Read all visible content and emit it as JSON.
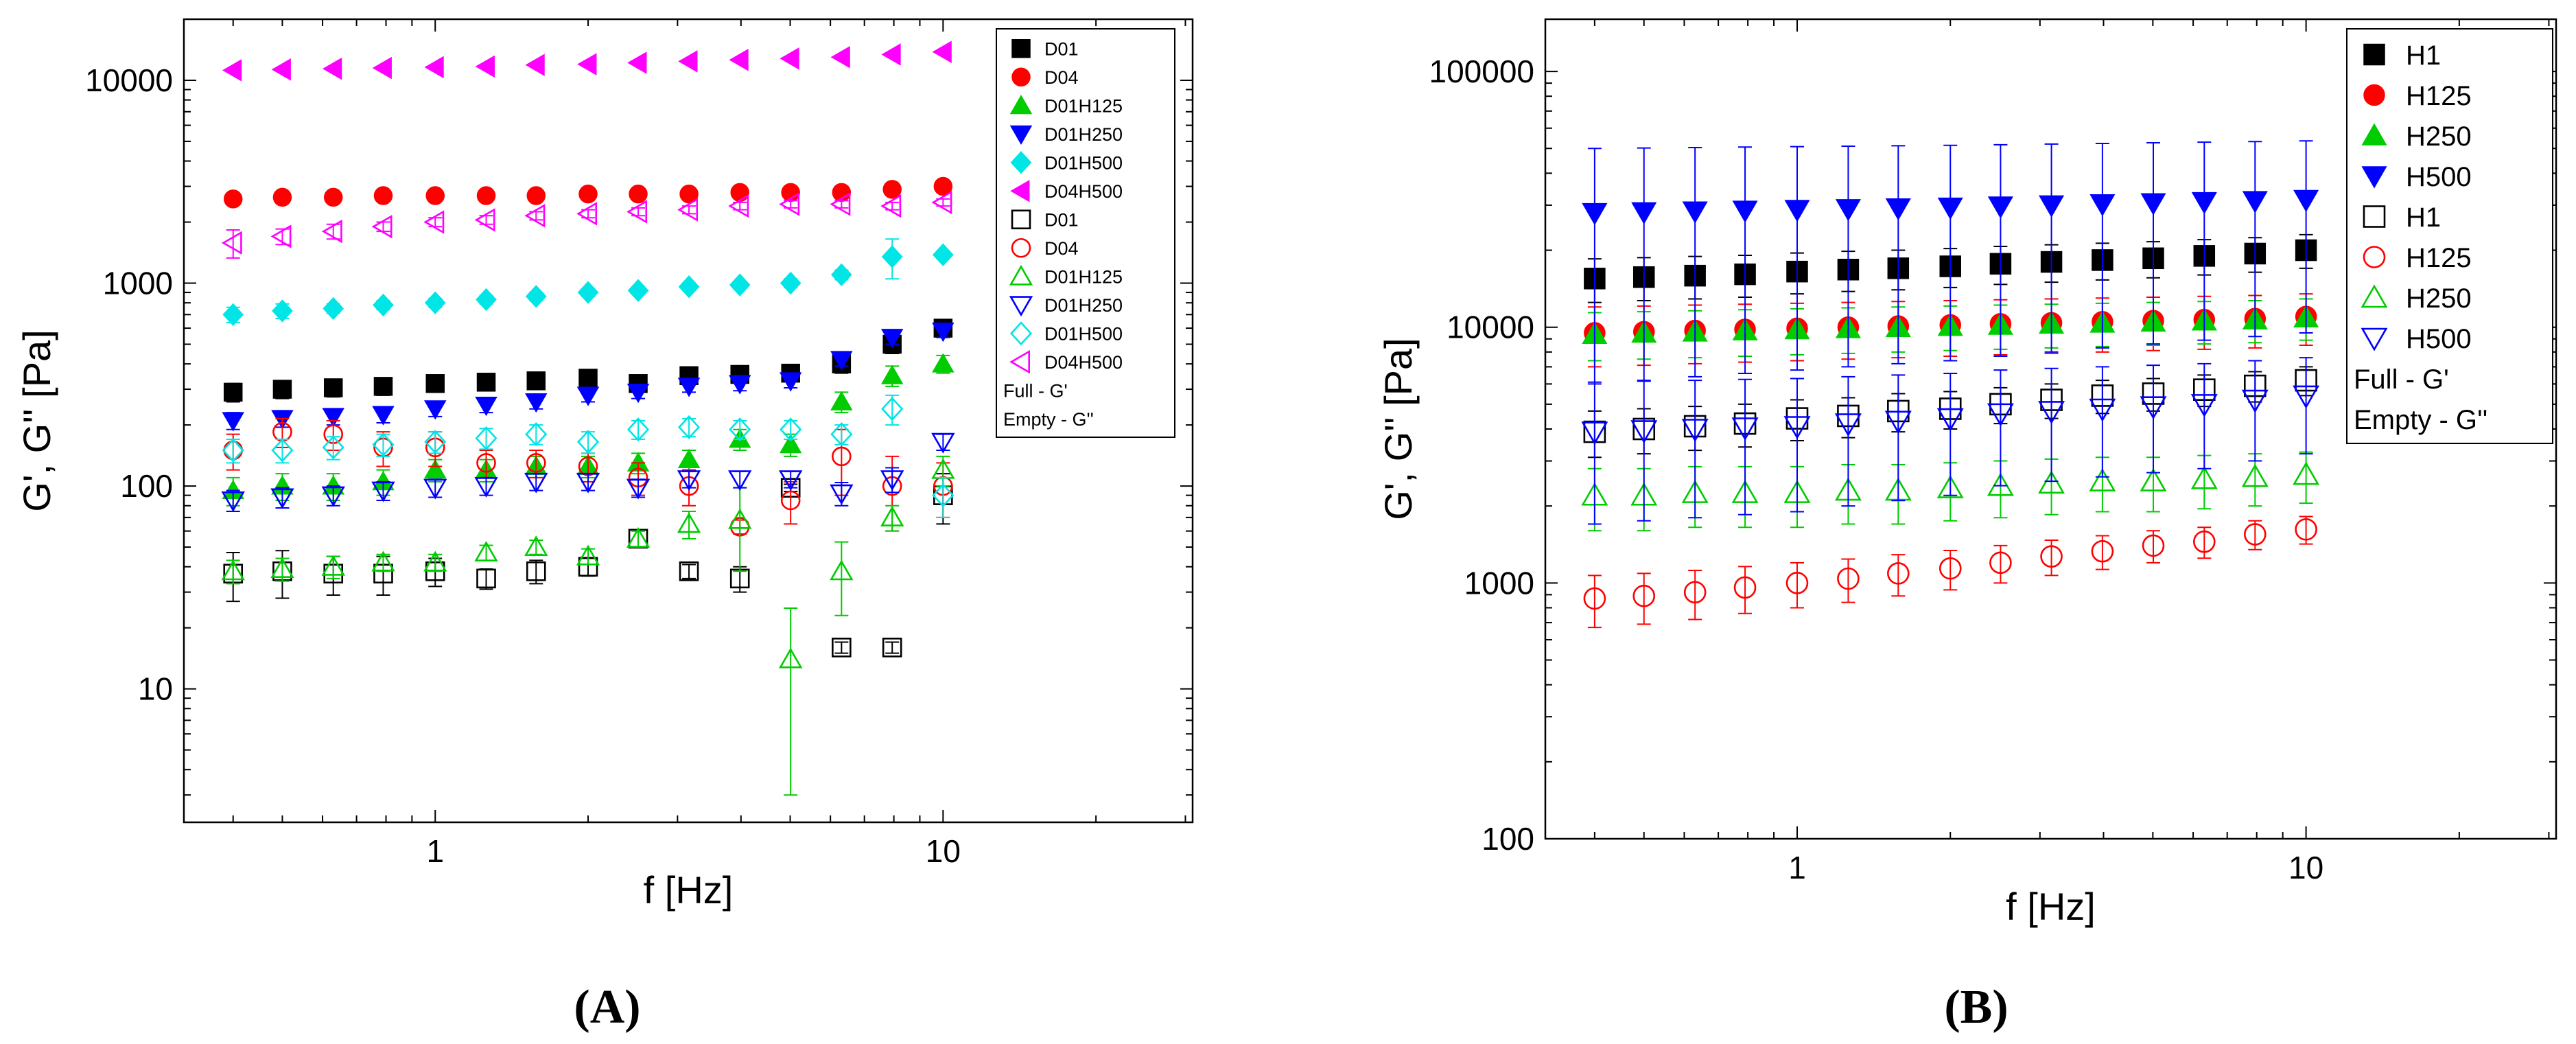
{
  "figure": {
    "panels": [
      {
        "id": "A",
        "label": "(A)",
        "xlabel": "f [Hz]",
        "ylabel": "G', G'' [Pa]",
        "legend_note": [
          "Full - G'",
          "Empty - G''"
        ]
      },
      {
        "id": "B",
        "label": "(B)",
        "xlabel": "f [Hz]",
        "ylabel": "G', G'' [Pa]",
        "legend_note": [
          "Full - G'",
          "Empty - G''"
        ]
      }
    ]
  },
  "chart_data": [
    {
      "type": "scatter",
      "panel": "A",
      "xscale": "log",
      "yscale": "log",
      "xlim": [
        0.32,
        31
      ],
      "ylim": [
        2.2,
        20000
      ],
      "xticks": [
        1,
        10
      ],
      "xticklabels": [
        "1",
        "10"
      ],
      "yticks": [
        10,
        100,
        1000,
        10000
      ],
      "yticklabels": [
        "10",
        "100",
        "1000",
        "10000"
      ],
      "xlabel": "f [Hz]",
      "ylabel": "G', G'' [Pa]",
      "legend_position": "top-right",
      "x": [
        0.4,
        0.5,
        0.63,
        0.79,
        1.0,
        1.26,
        1.58,
        2.0,
        2.51,
        3.16,
        3.98,
        5.01,
        6.31,
        7.94,
        10.0
      ],
      "series": [
        {
          "name": "D01",
          "marker": "square",
          "filled": true,
          "color": "#000000",
          "values": [
            290,
            300,
            305,
            310,
            320,
            325,
            330,
            340,
            320,
            350,
            355,
            360,
            400,
            500,
            600
          ],
          "errors": [
            30,
            30,
            30,
            30,
            30,
            30,
            30,
            30,
            30,
            30,
            30,
            30,
            40,
            50,
            60
          ]
        },
        {
          "name": "D04",
          "marker": "circle",
          "filled": true,
          "color": "#ff0000",
          "values": [
            2600,
            2650,
            2650,
            2700,
            2700,
            2700,
            2700,
            2750,
            2750,
            2750,
            2800,
            2800,
            2800,
            2900,
            3000
          ],
          "errors": [
            150,
            150,
            150,
            150,
            150,
            150,
            150,
            150,
            150,
            150,
            150,
            150,
            150,
            150,
            150
          ]
        },
        {
          "name": "D01H125",
          "marker": "triangle-up",
          "filled": true,
          "color": "#00cc00",
          "values": [
            95,
            100,
            100,
            105,
            120,
            120,
            125,
            125,
            130,
            135,
            170,
            160,
            260,
            350,
            400
          ],
          "errors": [
            15,
            15,
            15,
            15,
            15,
            15,
            15,
            15,
            15,
            15,
            20,
            20,
            30,
            40,
            40
          ]
        },
        {
          "name": "D01H250",
          "marker": "triangle-down",
          "filled": true,
          "color": "#0000ff",
          "values": [
            210,
            215,
            220,
            225,
            240,
            250,
            260,
            280,
            290,
            310,
            320,
            330,
            420,
            540,
            580
          ],
          "errors": [
            20,
            20,
            20,
            20,
            20,
            20,
            20,
            20,
            20,
            20,
            25,
            25,
            30,
            40,
            40
          ]
        },
        {
          "name": "D01H500",
          "marker": "diamond",
          "filled": true,
          "color": "#00e5e5",
          "values": [
            700,
            730,
            750,
            780,
            800,
            830,
            860,
            900,
            920,
            960,
            980,
            1000,
            1100,
            1350,
            1380
          ],
          "errors": [
            60,
            60,
            40,
            40,
            40,
            40,
            40,
            40,
            40,
            40,
            40,
            50,
            60,
            300,
            60
          ]
        },
        {
          "name": "D04H500",
          "marker": "triangle-left",
          "filled": true,
          "color": "#ff00ff",
          "values": [
            11200,
            11300,
            11400,
            11500,
            11600,
            11700,
            11900,
            12000,
            12200,
            12400,
            12600,
            12800,
            13000,
            13400,
            13800
          ],
          "errors": [
            200,
            200,
            200,
            200,
            200,
            200,
            200,
            200,
            200,
            200,
            200,
            200,
            200,
            200,
            200
          ]
        },
        {
          "name": "D01",
          "marker": "square",
          "filled": false,
          "color": "#000000",
          "values": [
            37,
            38,
            37,
            37,
            38,
            35,
            38,
            40,
            55,
            38,
            35,
            98,
            16,
            16,
            90
          ],
          "errors": [
            10,
            10,
            8,
            8,
            6,
            4,
            5,
            4,
            5,
            3,
            5,
            4,
            1,
            1,
            25
          ]
        },
        {
          "name": "D04",
          "marker": "circle",
          "filled": false,
          "color": "#ff0000",
          "values": [
            150,
            185,
            180,
            155,
            155,
            130,
            130,
            125,
            110,
            100,
            63,
            85,
            140,
            100,
            100
          ],
          "errors": [
            30,
            30,
            30,
            30,
            30,
            20,
            20,
            20,
            20,
            20,
            5,
            20,
            50,
            40,
            30
          ]
        },
        {
          "name": "D01H125",
          "marker": "triangle-up",
          "filled": false,
          "color": "#00cc00",
          "values": [
            38,
            39,
            40,
            42,
            42,
            47,
            50,
            45,
            55,
            65,
            68,
            14,
            38,
            70,
            120
          ],
          "errors": [
            5,
            5,
            5,
            4,
            4,
            4,
            4,
            4,
            5,
            10,
            30,
            11,
            15,
            10,
            20
          ]
        },
        {
          "name": "D01H250",
          "marker": "triangle-down",
          "filled": false,
          "color": "#0000ff",
          "values": [
            85,
            88,
            90,
            95,
            98,
            100,
            105,
            105,
            98,
            108,
            108,
            108,
            92,
            108,
            165
          ],
          "errors": [
            10,
            10,
            10,
            10,
            10,
            10,
            10,
            10,
            10,
            10,
            10,
            10,
            12,
            15,
            15
          ]
        },
        {
          "name": "D01H500",
          "marker": "diamond",
          "filled": false,
          "color": "#00e5e5",
          "values": [
            150,
            150,
            155,
            160,
            165,
            172,
            180,
            165,
            190,
            195,
            190,
            190,
            180,
            240,
            90
          ],
          "errors": [
            20,
            20,
            20,
            20,
            20,
            20,
            20,
            20,
            20,
            20,
            20,
            20,
            20,
            40,
            20
          ]
        },
        {
          "name": "D04H500",
          "marker": "triangle-left",
          "filled": false,
          "color": "#ff00ff",
          "values": [
            1580,
            1700,
            1800,
            1900,
            2000,
            2050,
            2150,
            2200,
            2250,
            2300,
            2400,
            2450,
            2450,
            2400,
            2500
          ],
          "errors": [
            250,
            150,
            150,
            100,
            100,
            100,
            100,
            100,
            100,
            100,
            100,
            100,
            100,
            100,
            100
          ]
        }
      ],
      "legend_note": [
        "Full - G'",
        "Empty - G''"
      ]
    },
    {
      "type": "scatter",
      "panel": "B",
      "xscale": "log",
      "yscale": "log",
      "xlim": [
        0.32,
        31
      ],
      "ylim": [
        100,
        160000
      ],
      "xticks": [
        1,
        10
      ],
      "xticklabels": [
        "1",
        "10"
      ],
      "yticks": [
        100,
        1000,
        10000,
        100000
      ],
      "yticklabels": [
        "100",
        "1000",
        "10000",
        "100000"
      ],
      "xlabel": "f [Hz]",
      "ylabel": "G', G'' [Pa]",
      "legend_position": "top-right",
      "x": [
        0.4,
        0.5,
        0.63,
        0.79,
        1.0,
        1.26,
        1.58,
        2.0,
        2.51,
        3.16,
        3.98,
        5.01,
        6.31,
        7.94,
        10.0
      ],
      "series": [
        {
          "name": "H1",
          "marker": "square",
          "filled": true,
          "color": "#000000",
          "values": [
            15500,
            15700,
            15900,
            16100,
            16500,
            16800,
            17000,
            17300,
            17700,
            18000,
            18300,
            18600,
            19000,
            19400,
            20000
          ],
          "errors": [
            3000,
            3000,
            3000,
            3000,
            3000,
            3000,
            3000,
            3000,
            3000,
            3000,
            3000,
            3000,
            3000,
            3000,
            3000
          ]
        },
        {
          "name": "H125",
          "marker": "circle",
          "filled": true,
          "color": "#ff0000",
          "values": [
            9500,
            9600,
            9700,
            9800,
            9900,
            10000,
            10100,
            10200,
            10300,
            10400,
            10500,
            10600,
            10700,
            10800,
            11000
          ],
          "errors": [
            2500,
            2500,
            2500,
            2500,
            2500,
            2500,
            2500,
            2500,
            2500,
            2500,
            2500,
            2500,
            2500,
            2500,
            2500
          ]
        },
        {
          "name": "H250",
          "marker": "triangle-up",
          "filled": true,
          "color": "#00cc00",
          "values": [
            9400,
            9500,
            9600,
            9700,
            9800,
            9900,
            10000,
            10100,
            10200,
            10300,
            10400,
            10500,
            10600,
            10700,
            10900
          ],
          "errors": [
            2000,
            2000,
            2000,
            2000,
            2000,
            2000,
            2000,
            2000,
            2000,
            2000,
            2000,
            2000,
            2000,
            2000,
            2000
          ]
        },
        {
          "name": "H500",
          "marker": "triangle-down",
          "filled": true,
          "color": "#0000ff",
          "values": [
            28000,
            28200,
            28400,
            28600,
            28800,
            29000,
            29200,
            29400,
            29700,
            30000,
            30300,
            30600,
            30900,
            31200,
            31500
          ],
          "errors": [
            22000,
            22000,
            22000,
            22000,
            22000,
            22000,
            22000,
            22000,
            22000,
            22000,
            22000,
            22000,
            22000,
            22000,
            22000
          ]
        },
        {
          "name": "H1",
          "marker": "square",
          "filled": false,
          "color": "#000000",
          "values": [
            3900,
            4000,
            4100,
            4200,
            4400,
            4500,
            4700,
            4800,
            5000,
            5200,
            5400,
            5500,
            5700,
            5900,
            6200
          ],
          "errors": [
            800,
            800,
            800,
            800,
            800,
            800,
            800,
            800,
            800,
            800,
            800,
            800,
            800,
            800,
            800
          ]
        },
        {
          "name": "H125",
          "marker": "circle",
          "filled": false,
          "color": "#ff0000",
          "values": [
            870,
            890,
            920,
            960,
            1000,
            1040,
            1090,
            1140,
            1200,
            1270,
            1330,
            1400,
            1450,
            1550,
            1620
          ],
          "errors": [
            200,
            200,
            200,
            200,
            200,
            200,
            200,
            200,
            200,
            200,
            200,
            200,
            200,
            200,
            200
          ]
        },
        {
          "name": "H250",
          "marker": "triangle-up",
          "filled": false,
          "color": "#00cc00",
          "values": [
            2200,
            2200,
            2250,
            2250,
            2250,
            2300,
            2300,
            2350,
            2400,
            2450,
            2500,
            2500,
            2550,
            2600,
            2650
          ],
          "errors": [
            600,
            600,
            600,
            600,
            600,
            600,
            600,
            600,
            600,
            600,
            600,
            600,
            600,
            600,
            600
          ]
        },
        {
          "name": "H500",
          "marker": "triangle-down",
          "filled": false,
          "color": "#0000ff",
          "values": [
            3900,
            3950,
            4000,
            4050,
            4100,
            4200,
            4300,
            4400,
            4600,
            4700,
            4800,
            4900,
            5000,
            5200,
            5400
          ],
          "errors": [
            2200,
            2200,
            2200,
            2200,
            2200,
            2200,
            2200,
            2200,
            2200,
            2200,
            2200,
            2200,
            2200,
            2200,
            2200
          ]
        }
      ],
      "legend_note": [
        "Full - G'",
        "Empty - G''"
      ]
    }
  ]
}
